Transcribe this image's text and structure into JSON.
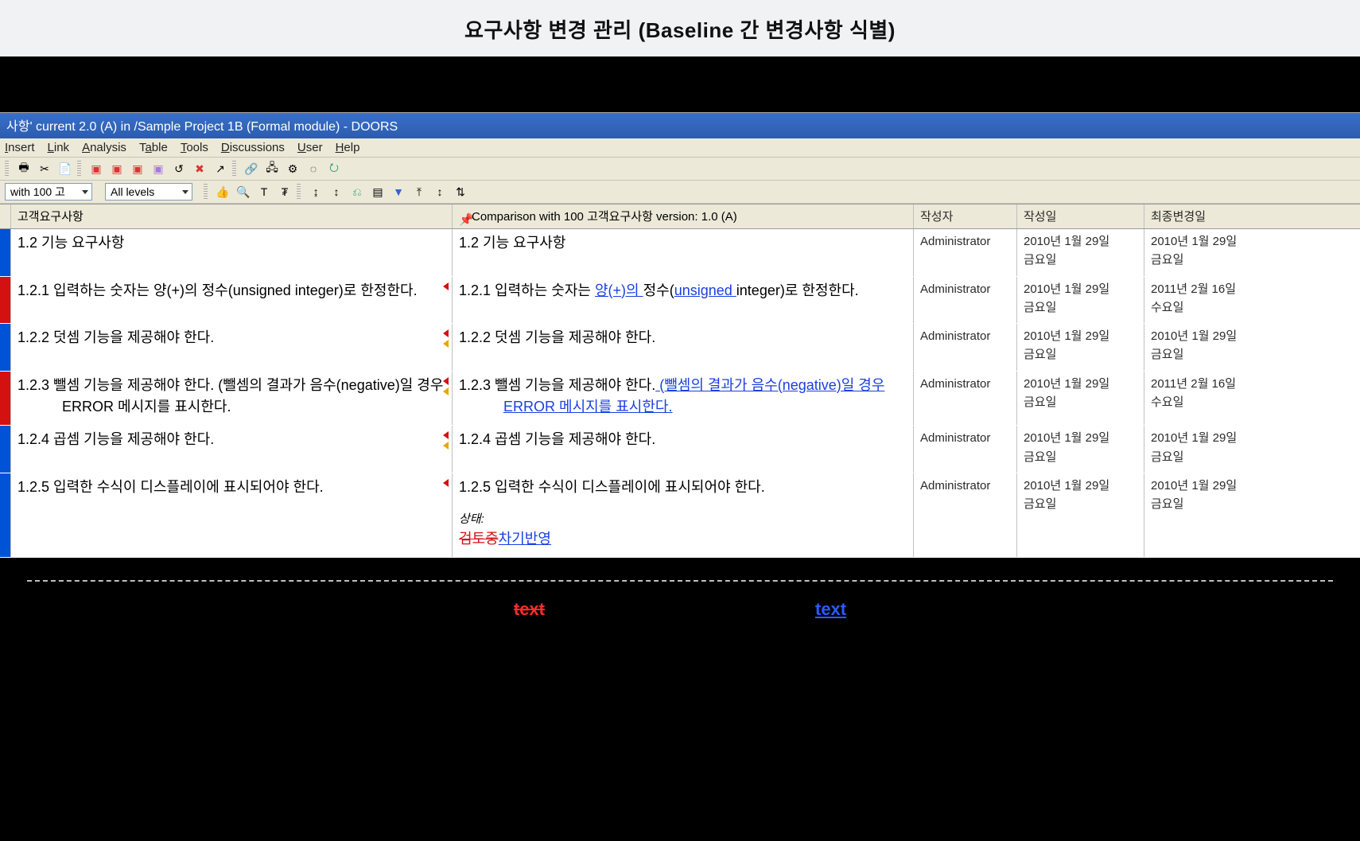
{
  "heading": "요구사항 변경 관리 (Baseline 간 변경사항 식별)",
  "window": {
    "title": "사항' current 2.0 (A) in /Sample Project 1B (Formal module) - DOORS",
    "menu": [
      "Insert",
      "Link",
      "Analysis",
      "Table",
      "Tools",
      "Discussions",
      "User",
      "Help"
    ],
    "view_dropdown": "with 100 고",
    "levels_dropdown": "All levels"
  },
  "columns": {
    "main": "고객요구사항",
    "comparison": "Comparison with 100 고객요구사항 version: 1.0 (A)",
    "author": "작성자",
    "created": "작성일",
    "modified": "최종변경일"
  },
  "rows": [
    {
      "gutter": "blue",
      "flags": [],
      "main_prefix": "1.2",
      "main_plain": "기능 요구사항",
      "comp_prefix": "1.2",
      "comp_segments": [
        {
          "t": "plain",
          "s": "기능 요구사항"
        }
      ],
      "author": "Administrator",
      "created": "2010년 1월 29일\n금요일",
      "modified": "2010년 1월 29일\n금요일"
    },
    {
      "gutter": "red",
      "flags": [
        "red"
      ],
      "main_prefix": "1.2.1",
      "main_plain": "입력하는 숫자는 양(+)의 정수(unsigned integer)로 한정한다.",
      "comp_prefix": "1.2.1",
      "comp_segments": [
        {
          "t": "plain",
          "s": "입력하는 숫자는 "
        },
        {
          "t": "add",
          "s": "양(+)의 "
        },
        {
          "t": "plain",
          "s": "정수("
        },
        {
          "t": "add",
          "s": "unsigned "
        },
        {
          "t": "plain",
          "s": "integer)로 한정한다."
        }
      ],
      "author": "Administrator",
      "created": "2010년 1월 29일\n금요일",
      "modified": "2011년 2월 16일\n수요일"
    },
    {
      "gutter": "blue",
      "flags": [
        "red",
        "yel"
      ],
      "main_prefix": "1.2.2",
      "main_plain": "덧셈 기능을 제공해야 한다.",
      "comp_prefix": "1.2.2",
      "comp_segments": [
        {
          "t": "plain",
          "s": "덧셈 기능을 제공해야 한다."
        }
      ],
      "author": "Administrator",
      "created": "2010년 1월 29일\n금요일",
      "modified": "2010년 1월 29일\n금요일"
    },
    {
      "gutter": "red",
      "flags": [
        "red",
        "yel"
      ],
      "main_prefix": "1.2.3",
      "main_plain": "뺄셈 기능을 제공해야 한다. (뺄셈의 결과가 음수(negative)일 경우 ERROR 메시지를 표시한다.",
      "comp_prefix": "1.2.3",
      "comp_segments": [
        {
          "t": "plain",
          "s": "뺄셈 기능을 제공해야 한다."
        },
        {
          "t": "add",
          "s": " (뺄셈의 결과가 음수(negative)일 경우 ERROR 메시지를 표시한다."
        }
      ],
      "author": "Administrator",
      "created": "2010년 1월 29일\n금요일",
      "modified": "2011년 2월 16일\n수요일"
    },
    {
      "gutter": "blue",
      "flags": [
        "red",
        "yel"
      ],
      "main_prefix": "1.2.4",
      "main_plain": "곱셈 기능을 제공해야 한다.",
      "comp_prefix": "1.2.4",
      "comp_segments": [
        {
          "t": "plain",
          "s": "곱셈 기능을 제공해야 한다."
        }
      ],
      "author": "Administrator",
      "created": "2010년 1월 29일\n금요일",
      "modified": "2010년 1월 29일\n금요일"
    },
    {
      "gutter": "blue",
      "flags": [
        "red"
      ],
      "main_prefix": "1.2.5",
      "main_plain": "입력한 수식이 디스플레이에 표시되어야 한다.",
      "comp_prefix": "1.2.5",
      "comp_segments": [
        {
          "t": "plain",
          "s": "입력한 수식이 디스플레이에 표시되어야 한다."
        }
      ],
      "status_label": "상태:",
      "status_del": "검토중",
      "status_add": "차기반영",
      "author": "Administrator",
      "created": "2010년 1월 29일\n금요일",
      "modified": "2010년 1월 29일\n금요일"
    }
  ],
  "legend": {
    "deleted": "text",
    "added": "text"
  },
  "colors": {
    "titlebar_from": "#3b6fc7",
    "titlebar_to": "#2a5db0",
    "add": "#1a3fe0",
    "del": "#d41111",
    "gutter_blue": "#0052d6",
    "gutter_red": "#d41111",
    "panel_bg": "#ece9d8"
  }
}
